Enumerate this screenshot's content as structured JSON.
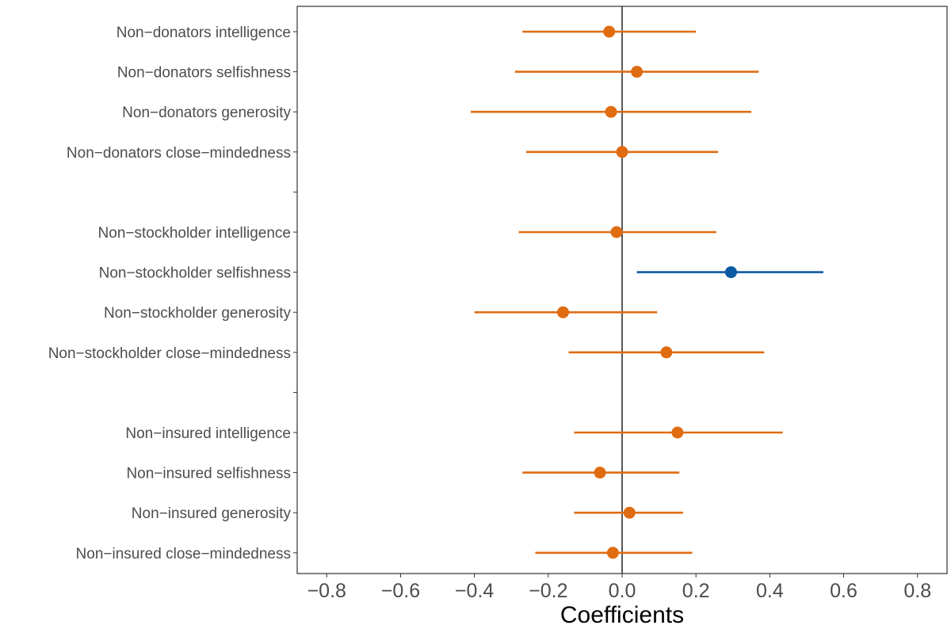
{
  "chart_data": {
    "type": "scatter",
    "subtype": "coefficient-plot-with-confidence-intervals",
    "xlabel": "Coefficients",
    "ylabel": "",
    "xlim": [
      -0.88,
      0.88
    ],
    "xticks": [
      -0.8,
      -0.6,
      -0.4,
      -0.2,
      0.0,
      0.2,
      0.4,
      0.6,
      0.8
    ],
    "xtick_labels": [
      "−0.8",
      "−0.6",
      "−0.4",
      "−0.2",
      "0.0",
      "0.2",
      "0.4",
      "0.6",
      "0.8"
    ],
    "reference_line_x": 0,
    "grid": false,
    "colors": {
      "not_significant": "#e06c12",
      "significant": "#0b5aa3",
      "reference_line": "#000000"
    },
    "rows": [
      {
        "label": "Non−donators intelligence",
        "estimate": -0.035,
        "low": -0.27,
        "high": 0.2,
        "significant": false
      },
      {
        "label": "Non−donators selfishness",
        "estimate": 0.04,
        "low": -0.29,
        "high": 0.37,
        "significant": false
      },
      {
        "label": "Non−donators generosity",
        "estimate": -0.03,
        "low": -0.41,
        "high": 0.35,
        "significant": false
      },
      {
        "label": "Non−donators close−mindedness",
        "estimate": 0.0,
        "low": -0.26,
        "high": 0.26,
        "significant": false
      },
      {
        "label": "",
        "spacer": true
      },
      {
        "label": "Non−stockholder intelligence",
        "estimate": -0.015,
        "low": -0.28,
        "high": 0.255,
        "significant": false
      },
      {
        "label": "Non−stockholder selfishness",
        "estimate": 0.295,
        "low": 0.04,
        "high": 0.545,
        "significant": true
      },
      {
        "label": "Non−stockholder generosity",
        "estimate": -0.16,
        "low": -0.4,
        "high": 0.095,
        "significant": false
      },
      {
        "label": "Non−stockholder close−mindedness",
        "estimate": 0.12,
        "low": -0.145,
        "high": 0.385,
        "significant": false
      },
      {
        "label": "",
        "spacer": true
      },
      {
        "label": "Non−insured intelligence",
        "estimate": 0.15,
        "low": -0.13,
        "high": 0.435,
        "significant": false
      },
      {
        "label": "Non−insured selfishness",
        "estimate": -0.06,
        "low": -0.27,
        "high": 0.155,
        "significant": false
      },
      {
        "label": "Non−insured generosity",
        "estimate": 0.02,
        "low": -0.13,
        "high": 0.165,
        "significant": false
      },
      {
        "label": "Non−insured close−mindedness",
        "estimate": -0.025,
        "low": -0.235,
        "high": 0.19,
        "significant": false
      }
    ]
  }
}
